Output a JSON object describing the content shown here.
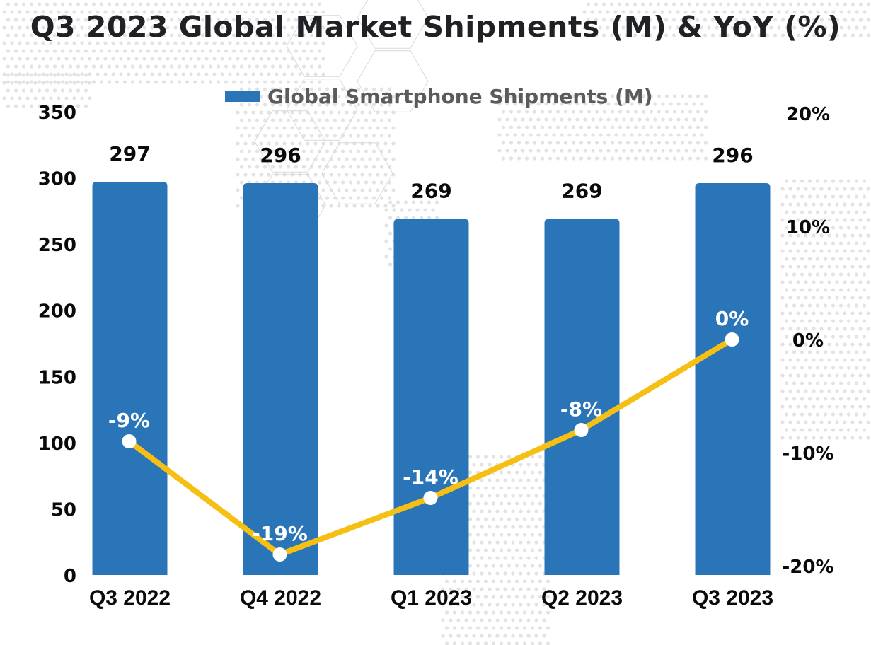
{
  "colors": {
    "bar": "#2a74b8",
    "line": "#f5bf14",
    "marker": "#ffffff",
    "text": "#0a0a0a",
    "title": "#1f2124",
    "legend_text": "#5b5b5d",
    "background_dots": "#e3e3e3"
  },
  "chart_data": {
    "type": "bar",
    "title": "Q3 2023 Global Market Shipments (M) & YoY (%)",
    "categories": [
      "Q3 2022",
      "Q4 2022",
      "Q1 2023",
      "Q2 2023",
      "Q3 2023"
    ],
    "series": [
      {
        "name": "Global Smartphone Shipments (M)",
        "type": "bar",
        "axis": "left",
        "values": [
          297,
          296,
          269,
          269,
          296
        ],
        "labels": [
          "297",
          "296",
          "269",
          "269",
          "296"
        ]
      },
      {
        "name": "YoY (%)",
        "type": "line",
        "axis": "right",
        "values": [
          -9,
          -19,
          -14,
          -8,
          0
        ],
        "labels": [
          "-9%",
          "-19%",
          "-14%",
          "-8%",
          "0%"
        ]
      }
    ],
    "legend": {
      "entries": [
        "Global Smartphone Shipments (M)"
      ],
      "placement": "top-center"
    },
    "y_left": {
      "label": "",
      "range": [
        0,
        350
      ],
      "ticks": [
        0,
        50,
        100,
        150,
        200,
        250,
        300,
        350
      ],
      "tick_labels": [
        "0",
        "50",
        "100",
        "150",
        "200",
        "250",
        "300",
        "350"
      ]
    },
    "y_right": {
      "label": "",
      "range": [
        -20,
        20
      ],
      "ticks": [
        -20,
        -10,
        0,
        10,
        20
      ],
      "tick_labels": [
        "-20%",
        "-10%",
        "0%",
        "10%",
        "20%"
      ]
    },
    "xlabel": "",
    "grid": false
  }
}
